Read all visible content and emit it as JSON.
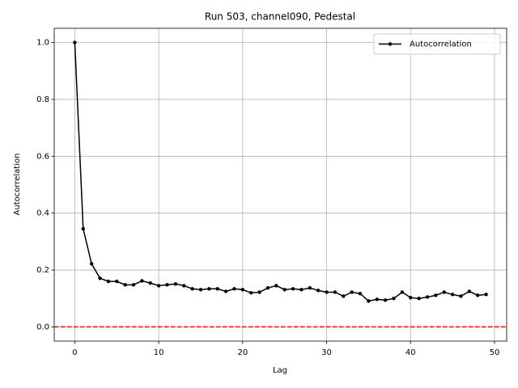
{
  "chart_data": {
    "type": "line",
    "title": "Run 503, channel090, Pedestal",
    "x_label": "Lag",
    "y_label": "Autocorrelation",
    "x": [
      0,
      1,
      2,
      3,
      4,
      5,
      6,
      7,
      8,
      9,
      10,
      11,
      12,
      13,
      14,
      15,
      16,
      17,
      18,
      19,
      20,
      21,
      22,
      23,
      24,
      25,
      26,
      27,
      28,
      29,
      30,
      31,
      32,
      33,
      34,
      35,
      36,
      37,
      38,
      39,
      40,
      41,
      42,
      43,
      44,
      45,
      46,
      47,
      48,
      49
    ],
    "series": [
      {
        "name": "Autocorrelation",
        "color": "#000000",
        "values": [
          1.0,
          0.345,
          0.222,
          0.171,
          0.16,
          0.16,
          0.148,
          0.148,
          0.162,
          0.154,
          0.145,
          0.148,
          0.151,
          0.145,
          0.134,
          0.131,
          0.134,
          0.134,
          0.125,
          0.134,
          0.131,
          0.12,
          0.122,
          0.137,
          0.145,
          0.131,
          0.134,
          0.131,
          0.137,
          0.128,
          0.122,
          0.122,
          0.108,
          0.122,
          0.117,
          0.091,
          0.097,
          0.094,
          0.1,
          0.122,
          0.103,
          0.1,
          0.105,
          0.111,
          0.122,
          0.114,
          0.108,
          0.125,
          0.111,
          0.114
        ]
      }
    ],
    "hline": {
      "value": 0,
      "color": "#ff0000"
    },
    "xlim": [
      -2.45,
      51.45
    ],
    "ylim": [
      -0.05,
      1.05
    ],
    "xticks": [
      0,
      10,
      20,
      30,
      40,
      50
    ],
    "yticks": [
      {
        "value": 0,
        "label": "0.0"
      },
      {
        "value": 0.2,
        "label": "0.2"
      },
      {
        "value": 0.4,
        "label": "0.4"
      },
      {
        "value": 0.6,
        "label": "0.6"
      },
      {
        "value": 0.8,
        "label": "0.8"
      },
      {
        "value": 1,
        "label": "1.0"
      }
    ],
    "grid": true,
    "legend": "upper right"
  }
}
